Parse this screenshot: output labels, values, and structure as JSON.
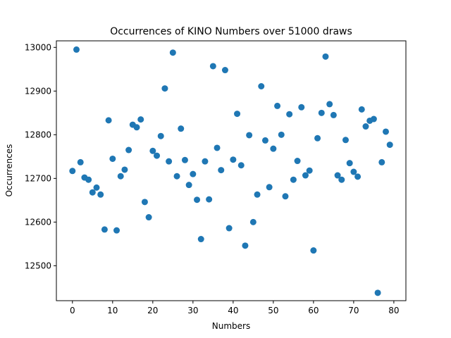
{
  "chart_data": {
    "type": "scatter",
    "title": "Occurrences of KINO Numbers over 51000 draws",
    "xlabel": "Numbers",
    "ylabel": "Occurrences",
    "xlim": [
      -4,
      83
    ],
    "ylim": [
      12420,
      13015
    ],
    "xticks": [
      0,
      10,
      20,
      30,
      40,
      50,
      60,
      70,
      80
    ],
    "yticks": [
      12500,
      12600,
      12700,
      12800,
      12900,
      13000
    ],
    "grid": false,
    "marker_color": "#1f77b4",
    "points": {
      "x": [
        0,
        1,
        2,
        3,
        4,
        5,
        6,
        7,
        8,
        9,
        10,
        11,
        12,
        13,
        14,
        15,
        16,
        17,
        18,
        19,
        20,
        21,
        22,
        23,
        24,
        25,
        26,
        27,
        28,
        29,
        30,
        31,
        32,
        33,
        34,
        35,
        36,
        37,
        38,
        39,
        40,
        41,
        42,
        43,
        44,
        45,
        46,
        47,
        48,
        49,
        50,
        51,
        52,
        53,
        54,
        55,
        56,
        57,
        58,
        59,
        60,
        61,
        62,
        63,
        64,
        65,
        66,
        67,
        68,
        69,
        70,
        71,
        72,
        73,
        74,
        75,
        76,
        77,
        78,
        79
      ],
      "y": [
        12717,
        12995,
        12737,
        12702,
        12697,
        12668,
        12679,
        12663,
        12583,
        12833,
        12745,
        12581,
        12705,
        12720,
        12765,
        12823,
        12817,
        12835,
        12646,
        12611,
        12763,
        12752,
        12797,
        12906,
        12739,
        12988,
        12705,
        12814,
        12742,
        12685,
        12710,
        12651,
        12561,
        12739,
        12652,
        12957,
        12770,
        12719,
        12948,
        12586,
        12743,
        12848,
        12730,
        12546,
        12799,
        12600,
        12663,
        12911,
        12787,
        12680,
        12768,
        12866,
        12800,
        12659,
        12847,
        12697,
        12740,
        12863,
        12707,
        12718,
        12535,
        12792,
        12850,
        12979,
        12870,
        12845,
        12707,
        12697,
        12788,
        12735,
        12715,
        12704,
        12858,
        12819,
        12832,
        12836,
        12438,
        12737,
        12807,
        12777
      ]
    }
  }
}
